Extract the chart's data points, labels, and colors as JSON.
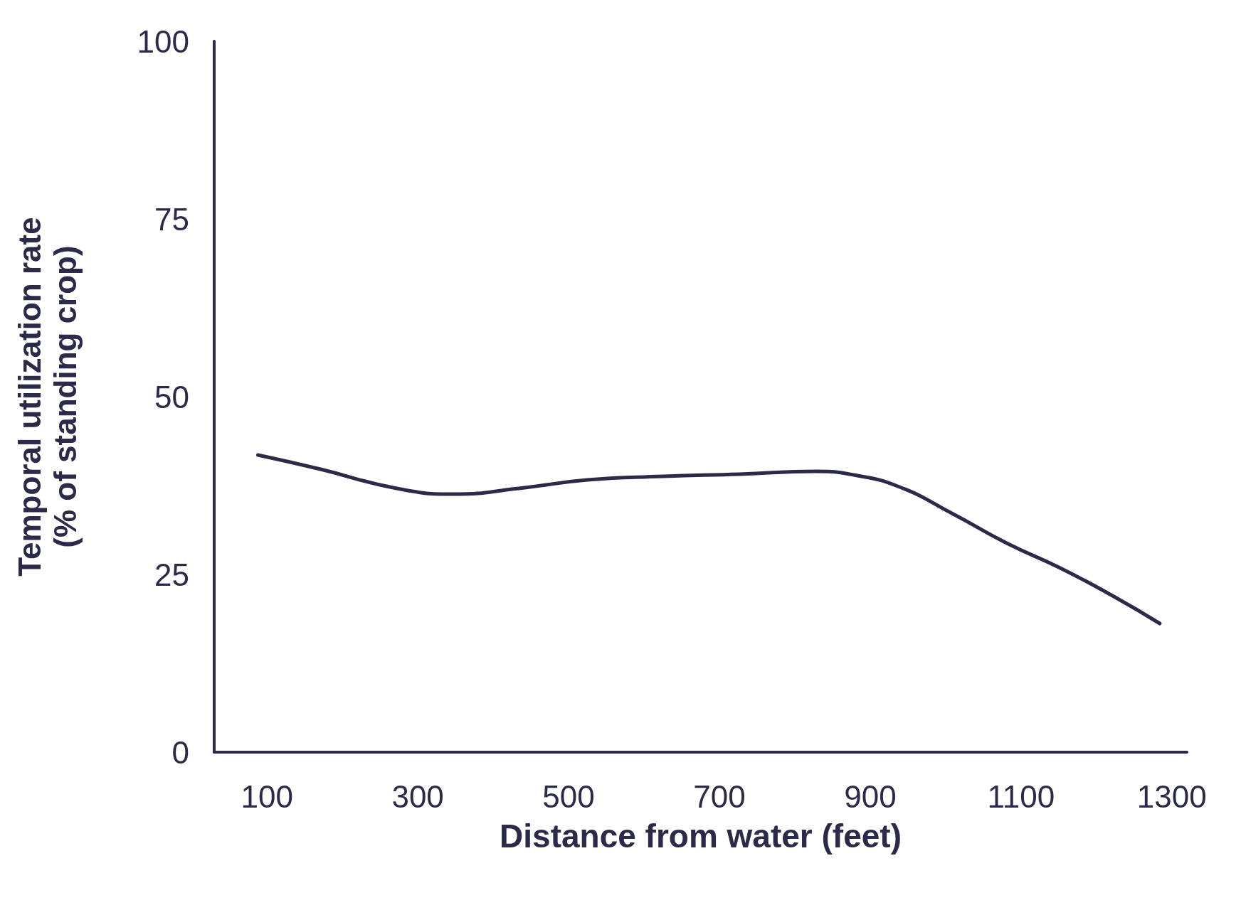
{
  "chart_data": {
    "type": "line",
    "xlabel": "Distance from water (feet)",
    "ylabel": "Temporal utilization rate\n(% of standing crop)",
    "x": [
      88,
      171,
      272,
      348,
      434,
      525,
      626,
      727,
      828,
      878,
      939,
      1010,
      1081,
      1152,
      1223,
      1284
    ],
    "series": [
      {
        "color": "#2b2a48",
        "values": [
          41.8,
          39.8,
          37.1,
          36.3,
          37.1,
          38.3,
          38.8,
          39.1,
          39.5,
          39.0,
          37.3,
          33.5,
          29.4,
          25.9,
          21.9,
          18.1
        ]
      }
    ],
    "xlim": [
      30,
      1320
    ],
    "xticks": [
      100,
      300,
      500,
      700,
      900,
      1100,
      1300
    ],
    "ylim": [
      0,
      100
    ],
    "yticks": [
      0,
      25,
      50,
      75,
      100
    ]
  }
}
